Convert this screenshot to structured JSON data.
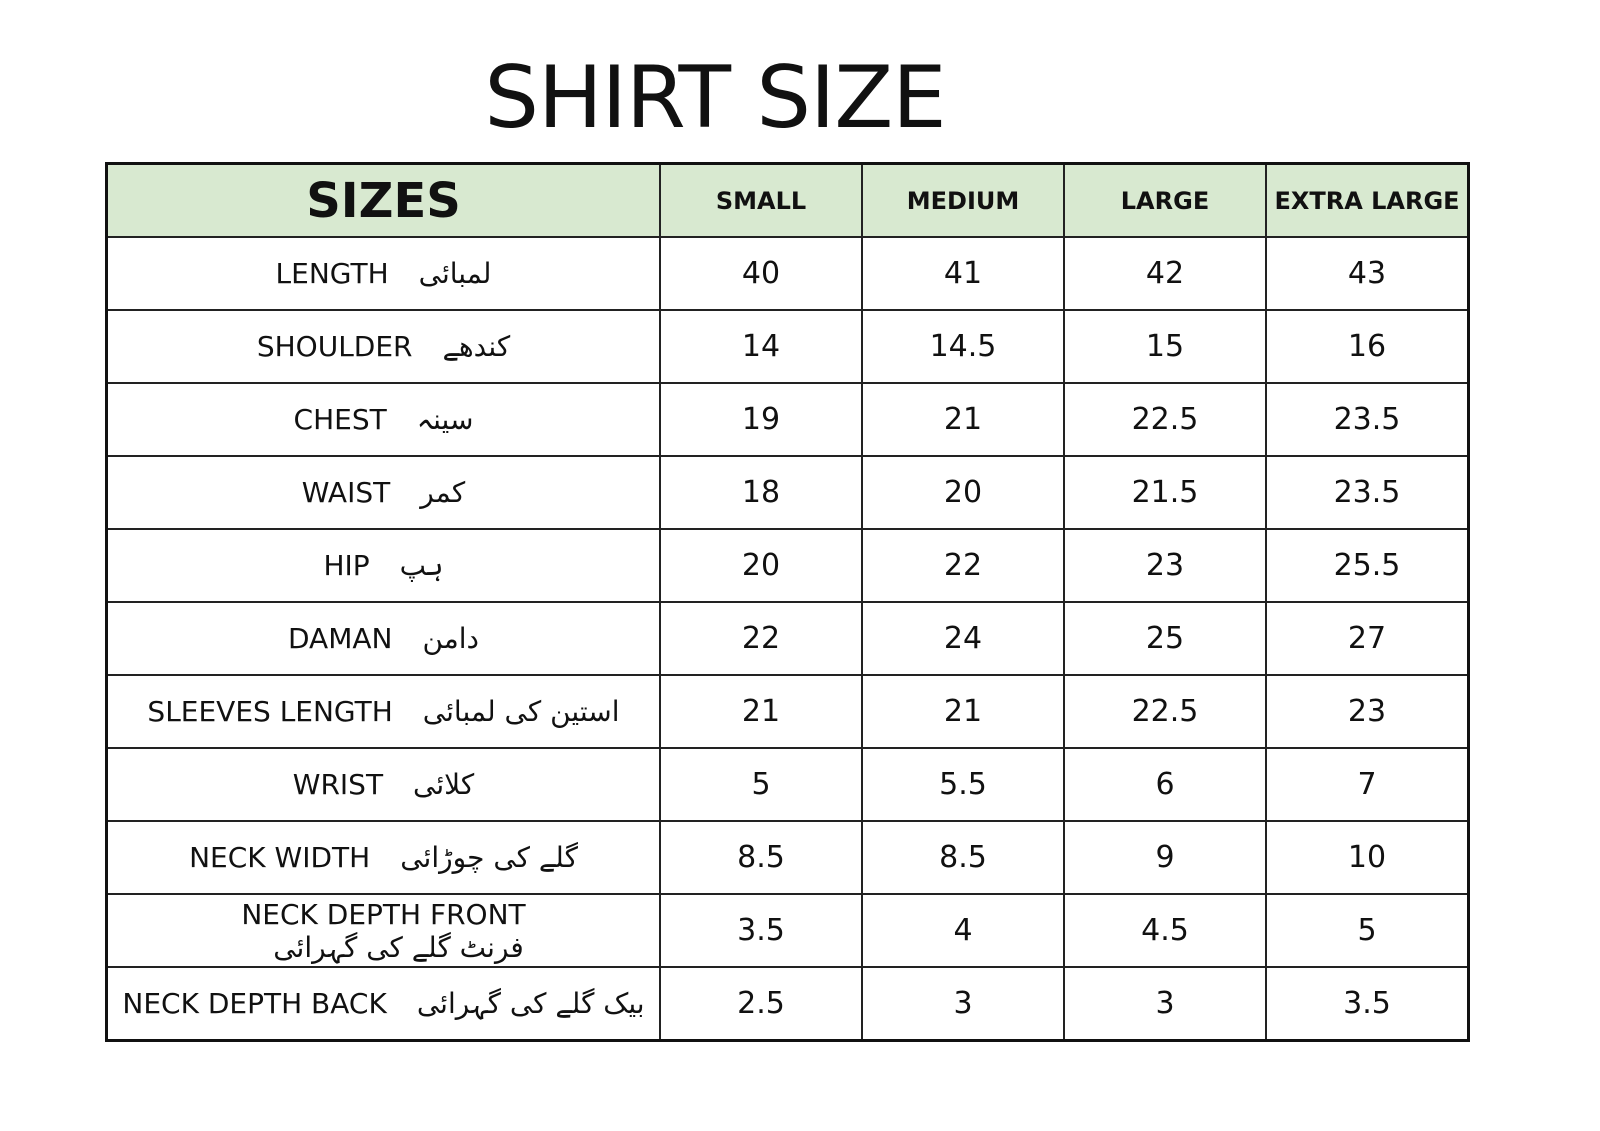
{
  "title": "SHIRT SIZE",
  "header_color": "#d8e9d0",
  "table": {
    "columns": [
      "SIZES",
      "SMALL",
      "MEDIUM",
      "LARGE",
      "EXTRA LARGE"
    ],
    "rows": [
      {
        "label": "LENGTH",
        "urdu": "لمبائی",
        "values": [
          "40",
          "41",
          "42",
          "43"
        ]
      },
      {
        "label": "SHOULDER",
        "urdu": "کندھے",
        "values": [
          "14",
          "14.5",
          "15",
          "16"
        ]
      },
      {
        "label": "CHEST",
        "urdu": "سینہ",
        "values": [
          "19",
          "21",
          "22.5",
          "23.5"
        ]
      },
      {
        "label": "WAIST",
        "urdu": "کمر",
        "values": [
          "18",
          "20",
          "21.5",
          "23.5"
        ]
      },
      {
        "label": "HIP",
        "urdu": "ہپ",
        "values": [
          "20",
          "22",
          "23",
          "25.5"
        ]
      },
      {
        "label": "DAMAN",
        "urdu": "دامن",
        "values": [
          "22",
          "24",
          "25",
          "27"
        ]
      },
      {
        "label": "SLEEVES LENGTH",
        "urdu": "استین کی لمبائی",
        "values": [
          "21",
          "21",
          "22.5",
          "23"
        ]
      },
      {
        "label": "WRIST",
        "urdu": "کلائی",
        "values": [
          "5",
          "5.5",
          "6",
          "7"
        ]
      },
      {
        "label": "NECK WIDTH",
        "urdu": "گلے کی چوڑائی",
        "values": [
          "8.5",
          "8.5",
          "9",
          "10"
        ]
      },
      {
        "label": "NECK DEPTH FRONT",
        "urdu": "فرنٹ گلے کی گہرائی",
        "values": [
          "3.5",
          "4",
          "4.5",
          "5"
        ]
      },
      {
        "label": "NECK DEPTH BACK",
        "urdu": "بیک گلے کی گہرائی",
        "values": [
          "2.5",
          "3",
          "3",
          "3.5"
        ]
      }
    ]
  }
}
